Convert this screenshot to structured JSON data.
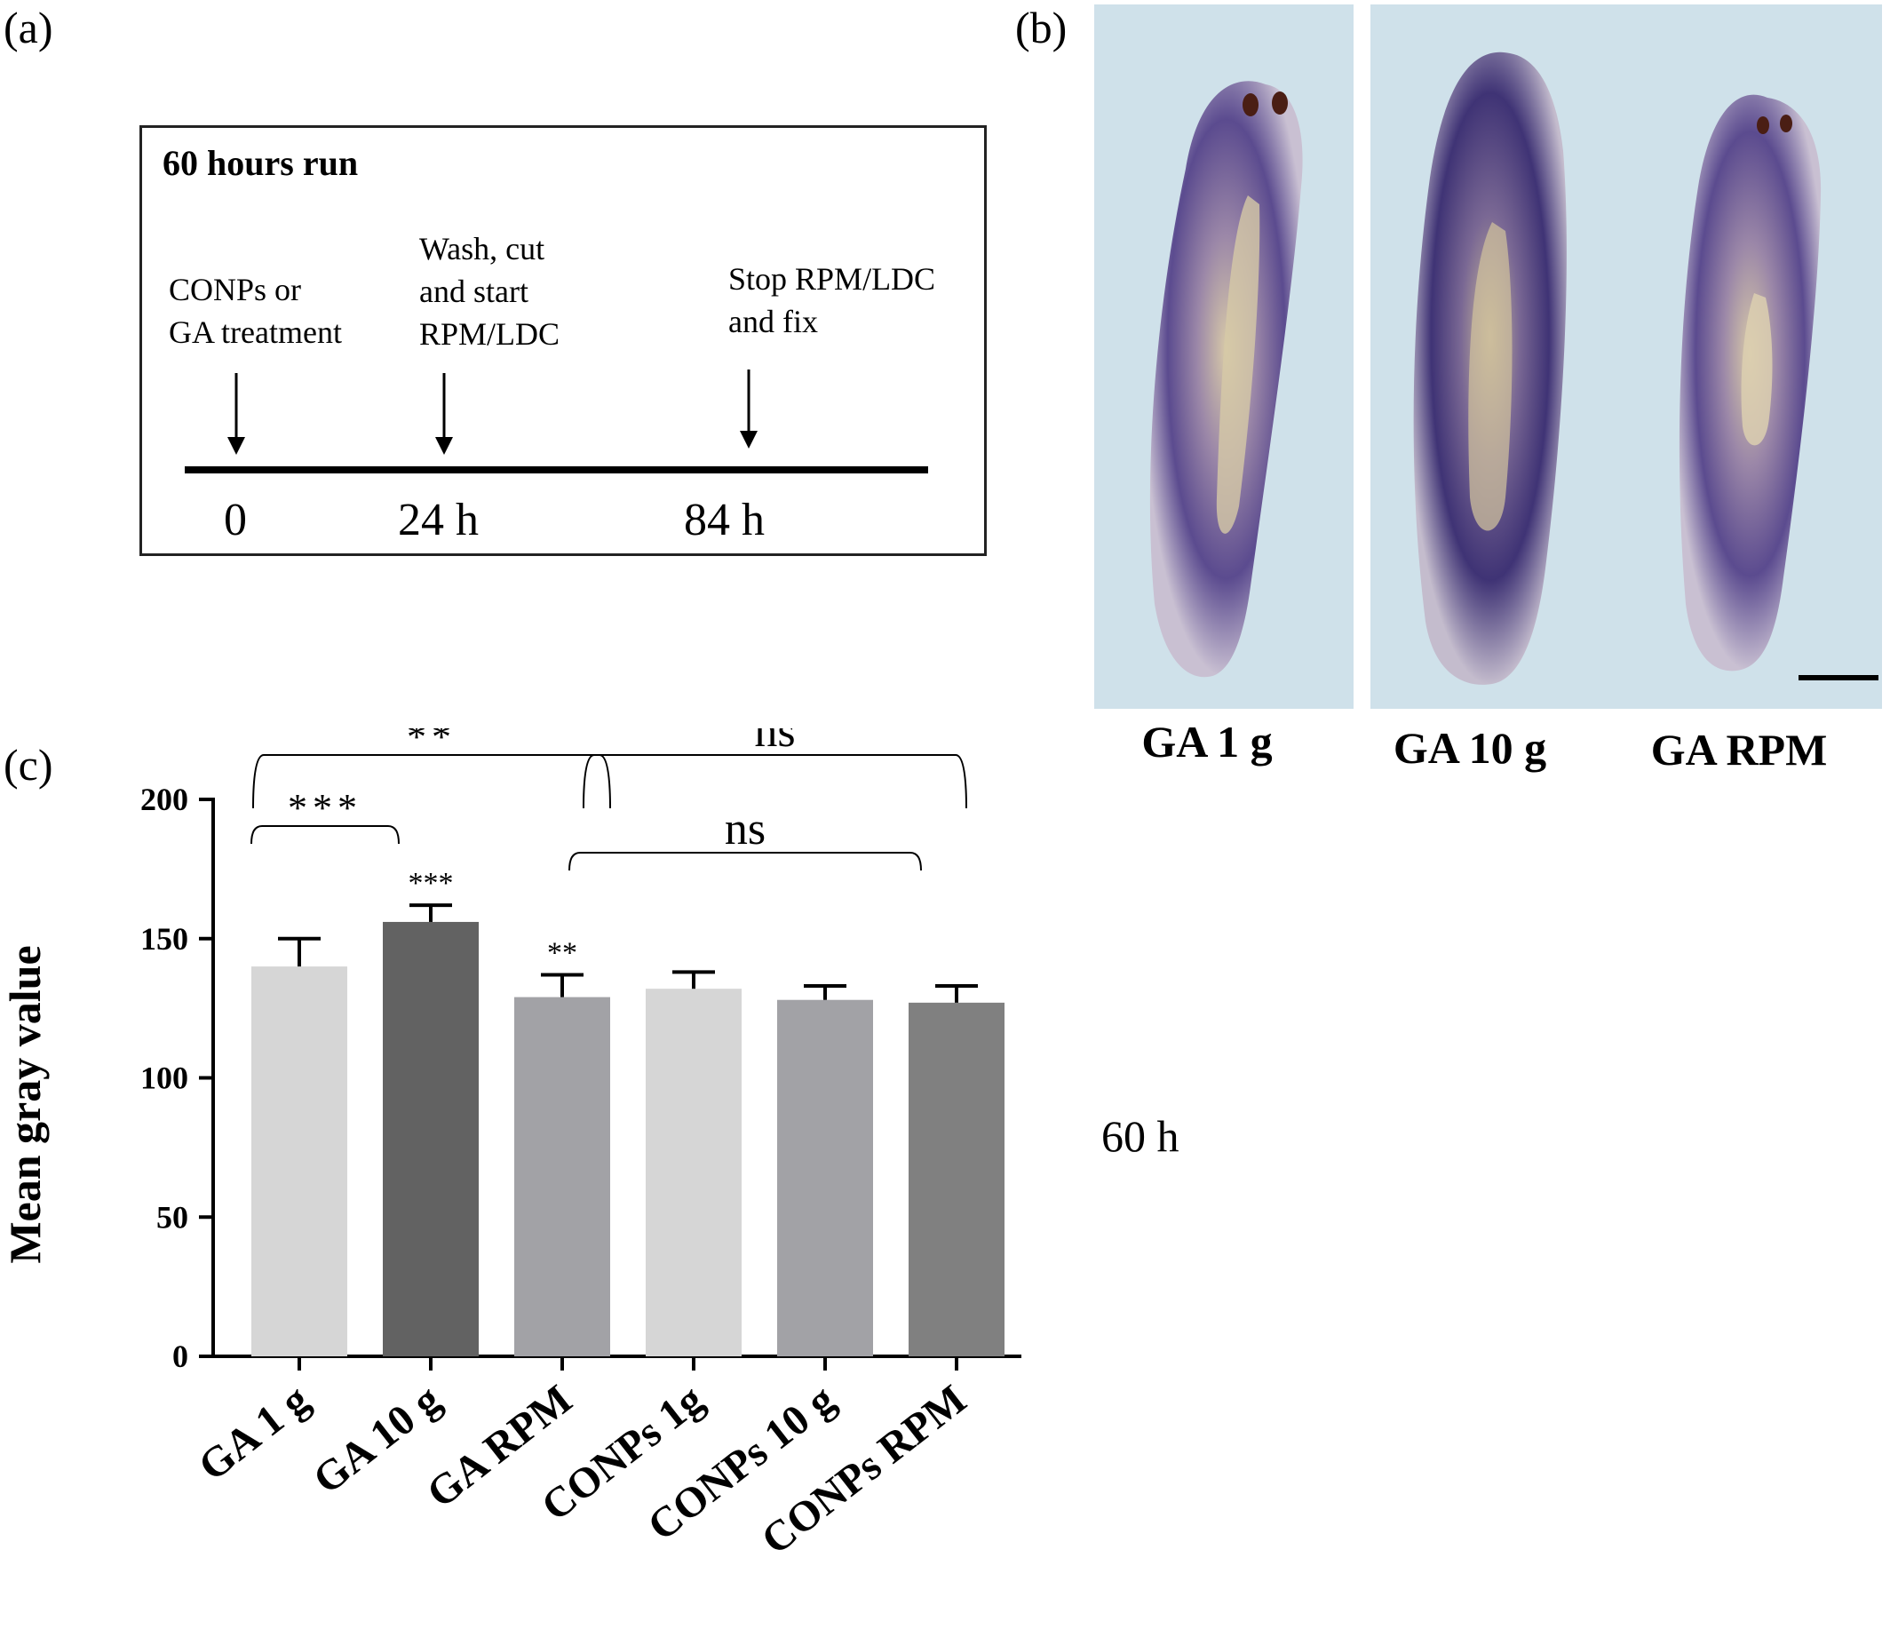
{
  "panel_a": {
    "label": "(a)",
    "title": "60 hours run",
    "events": [
      {
        "text_lines": [
          "CONPs or",
          "GA treatment"
        ],
        "time": "0"
      },
      {
        "text_lines": [
          "Wash, cut",
          "and start",
          "RPM/LDC"
        ],
        "time": "24 h"
      },
      {
        "text_lines": [
          "Stop RPM/LDC",
          "and fix"
        ],
        "time": "84 h"
      }
    ]
  },
  "panel_b": {
    "label": "(b)",
    "captions": [
      "GA 1 g",
      "GA 10 g",
      "GA RPM"
    ]
  },
  "panel_c": {
    "label": "(c)",
    "side_note": "60 h"
  },
  "chart_data": {
    "type": "bar",
    "ylabel": "Mean gray value",
    "ylim": [
      0,
      200
    ],
    "yticks": [
      0,
      50,
      100,
      150,
      200
    ],
    "categories": [
      "GA 1 g",
      "GA 10 g",
      "GA RPM",
      "CONPs 1g",
      "CONPs 10 g",
      "CONPs RPM"
    ],
    "values": [
      140,
      156,
      129,
      132,
      128,
      127
    ],
    "errors": [
      10,
      6,
      8,
      6,
      5,
      6
    ],
    "colors": [
      "#d6d6d6",
      "#626262",
      "#a2a2a6",
      "#d6d6d6",
      "#a2a2a6",
      "#808080"
    ],
    "bar_annotations": [
      "",
      "***",
      "**",
      "",
      "",
      ""
    ],
    "comparisons": [
      {
        "from": 0,
        "to": 2,
        "label": "**"
      },
      {
        "from": 0,
        "to": 1,
        "label": "***"
      },
      {
        "from": 3,
        "to": 5,
        "label": "ns"
      },
      {
        "from": 3,
        "to": 4,
        "label": "ns"
      }
    ]
  }
}
